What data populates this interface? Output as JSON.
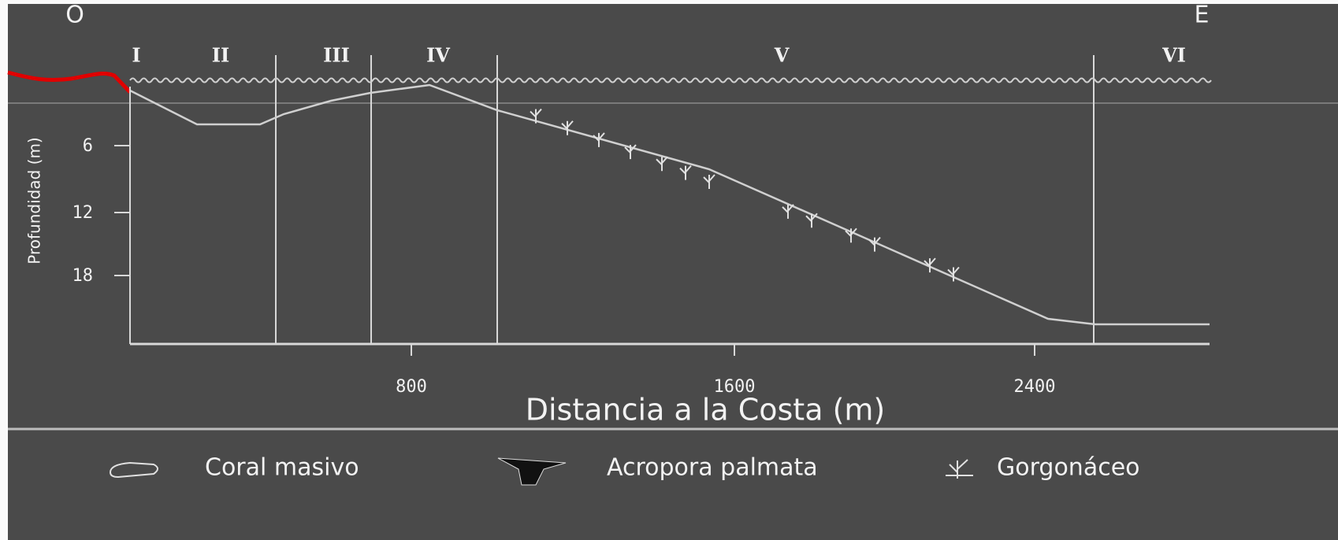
{
  "header": {
    "west": "O",
    "east": "E"
  },
  "zones": [
    "I",
    "II",
    "III",
    "IV",
    "V",
    "VI"
  ],
  "y_axis": {
    "label": "Profundidad (m)",
    "ticks": [
      "6",
      "12",
      "18"
    ]
  },
  "x_axis": {
    "label": "Distancia a la Costa (m)",
    "ticks": [
      "800",
      "1600",
      "2400"
    ]
  },
  "legend": [
    "Coral masivo",
    "Acropora palmata",
    "Gorgonáceo"
  ]
}
